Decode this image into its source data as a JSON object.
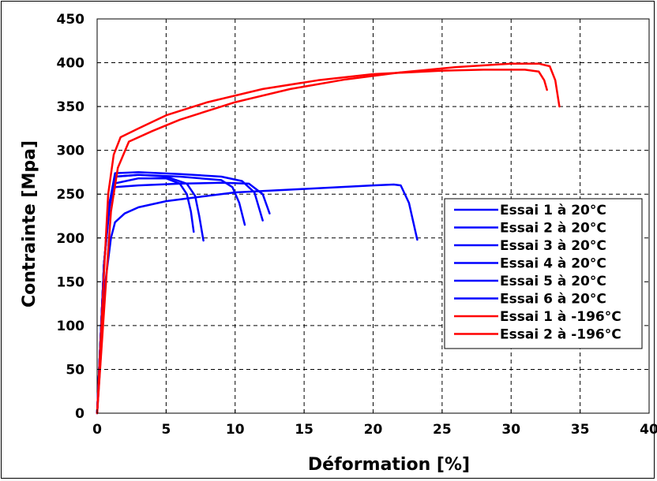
{
  "chart_data": {
    "type": "line",
    "xlabel": "Déformation [%]",
    "ylabel": "Contrainte [Mpa]",
    "xlim": [
      0,
      40
    ],
    "ylim": [
      0,
      450
    ],
    "xticks": [
      "0",
      "5",
      "10",
      "15",
      "20",
      "25",
      "30",
      "35",
      "40"
    ],
    "yticks": [
      "0",
      "50",
      "100",
      "150",
      "200",
      "250",
      "300",
      "350",
      "400",
      "450"
    ],
    "grid": "dashed",
    "legend_position": "right",
    "colors": {
      "blue": "#0000ff",
      "red": "#ff0000"
    },
    "series": [
      {
        "name": "Essai 1 à 20°C",
        "color": "#0000ff",
        "x": [
          0,
          0.6,
          1.0,
          1.3,
          2,
          3,
          5,
          8,
          10,
          15,
          20,
          21.5,
          22.0,
          22.6,
          23.2
        ],
        "y": [
          0,
          150,
          200,
          218,
          228,
          235,
          242,
          248,
          252,
          256,
          260,
          261,
          260,
          240,
          198
        ]
      },
      {
        "name": "Essai 2 à 20°C",
        "color": "#0000ff",
        "x": [
          0,
          0.5,
          0.9,
          1.2,
          3,
          5,
          6.0,
          6.5,
          6.8,
          7.0
        ],
        "y": [
          0,
          170,
          235,
          262,
          268,
          268,
          262,
          250,
          230,
          207
        ]
      },
      {
        "name": "Essai 3 à 20°C",
        "color": "#0000ff",
        "x": [
          0,
          0.5,
          0.9,
          1.3,
          3,
          5,
          6.5,
          7.1,
          7.4,
          7.7
        ],
        "y": [
          0,
          170,
          240,
          270,
          272,
          270,
          262,
          248,
          225,
          197
        ]
      },
      {
        "name": "Essai 4 à 20°C",
        "color": "#0000ff",
        "x": [
          0,
          0.5,
          0.9,
          1.3,
          3,
          6,
          9,
          9.8,
          10.3,
          10.7
        ],
        "y": [
          0,
          170,
          240,
          270,
          272,
          270,
          266,
          258,
          240,
          215
        ]
      },
      {
        "name": "Essai 5 à 20°C",
        "color": "#0000ff",
        "x": [
          0,
          0.5,
          0.9,
          1.3,
          3,
          6,
          9,
          10.5,
          11.4,
          12.0
        ],
        "y": [
          0,
          170,
          240,
          274,
          275,
          273,
          270,
          265,
          252,
          220
        ]
      },
      {
        "name": "Essai 6 à 20°C",
        "color": "#0000ff",
        "x": [
          0,
          0.5,
          0.9,
          1.3,
          3,
          6,
          9,
          11.0,
          12.0,
          12.5
        ],
        "y": [
          0,
          170,
          240,
          258,
          260,
          262,
          263,
          262,
          250,
          228
        ]
      },
      {
        "name": "Essai 1 à -196°C",
        "color": "#ff0000",
        "x": [
          0,
          0.5,
          0.8,
          1.2,
          1.7,
          3,
          5,
          8,
          12,
          16,
          20,
          25,
          28,
          31,
          32.0,
          32.4,
          32.6
        ],
        "y": [
          0,
          160,
          250,
          295,
          315,
          325,
          340,
          355,
          370,
          380,
          387,
          391,
          392,
          392,
          390,
          380,
          369
        ]
      },
      {
        "name": "Essai 2 à -196°C",
        "color": "#ff0000",
        "x": [
          0,
          0.6,
          1.0,
          1.5,
          2.3,
          4,
          6,
          10,
          14,
          18,
          22,
          26,
          30,
          32,
          32.8,
          33.2,
          33.5
        ],
        "y": [
          0,
          140,
          230,
          280,
          310,
          322,
          335,
          355,
          370,
          381,
          389,
          395,
          399,
          399,
          396,
          380,
          350
        ]
      }
    ]
  }
}
